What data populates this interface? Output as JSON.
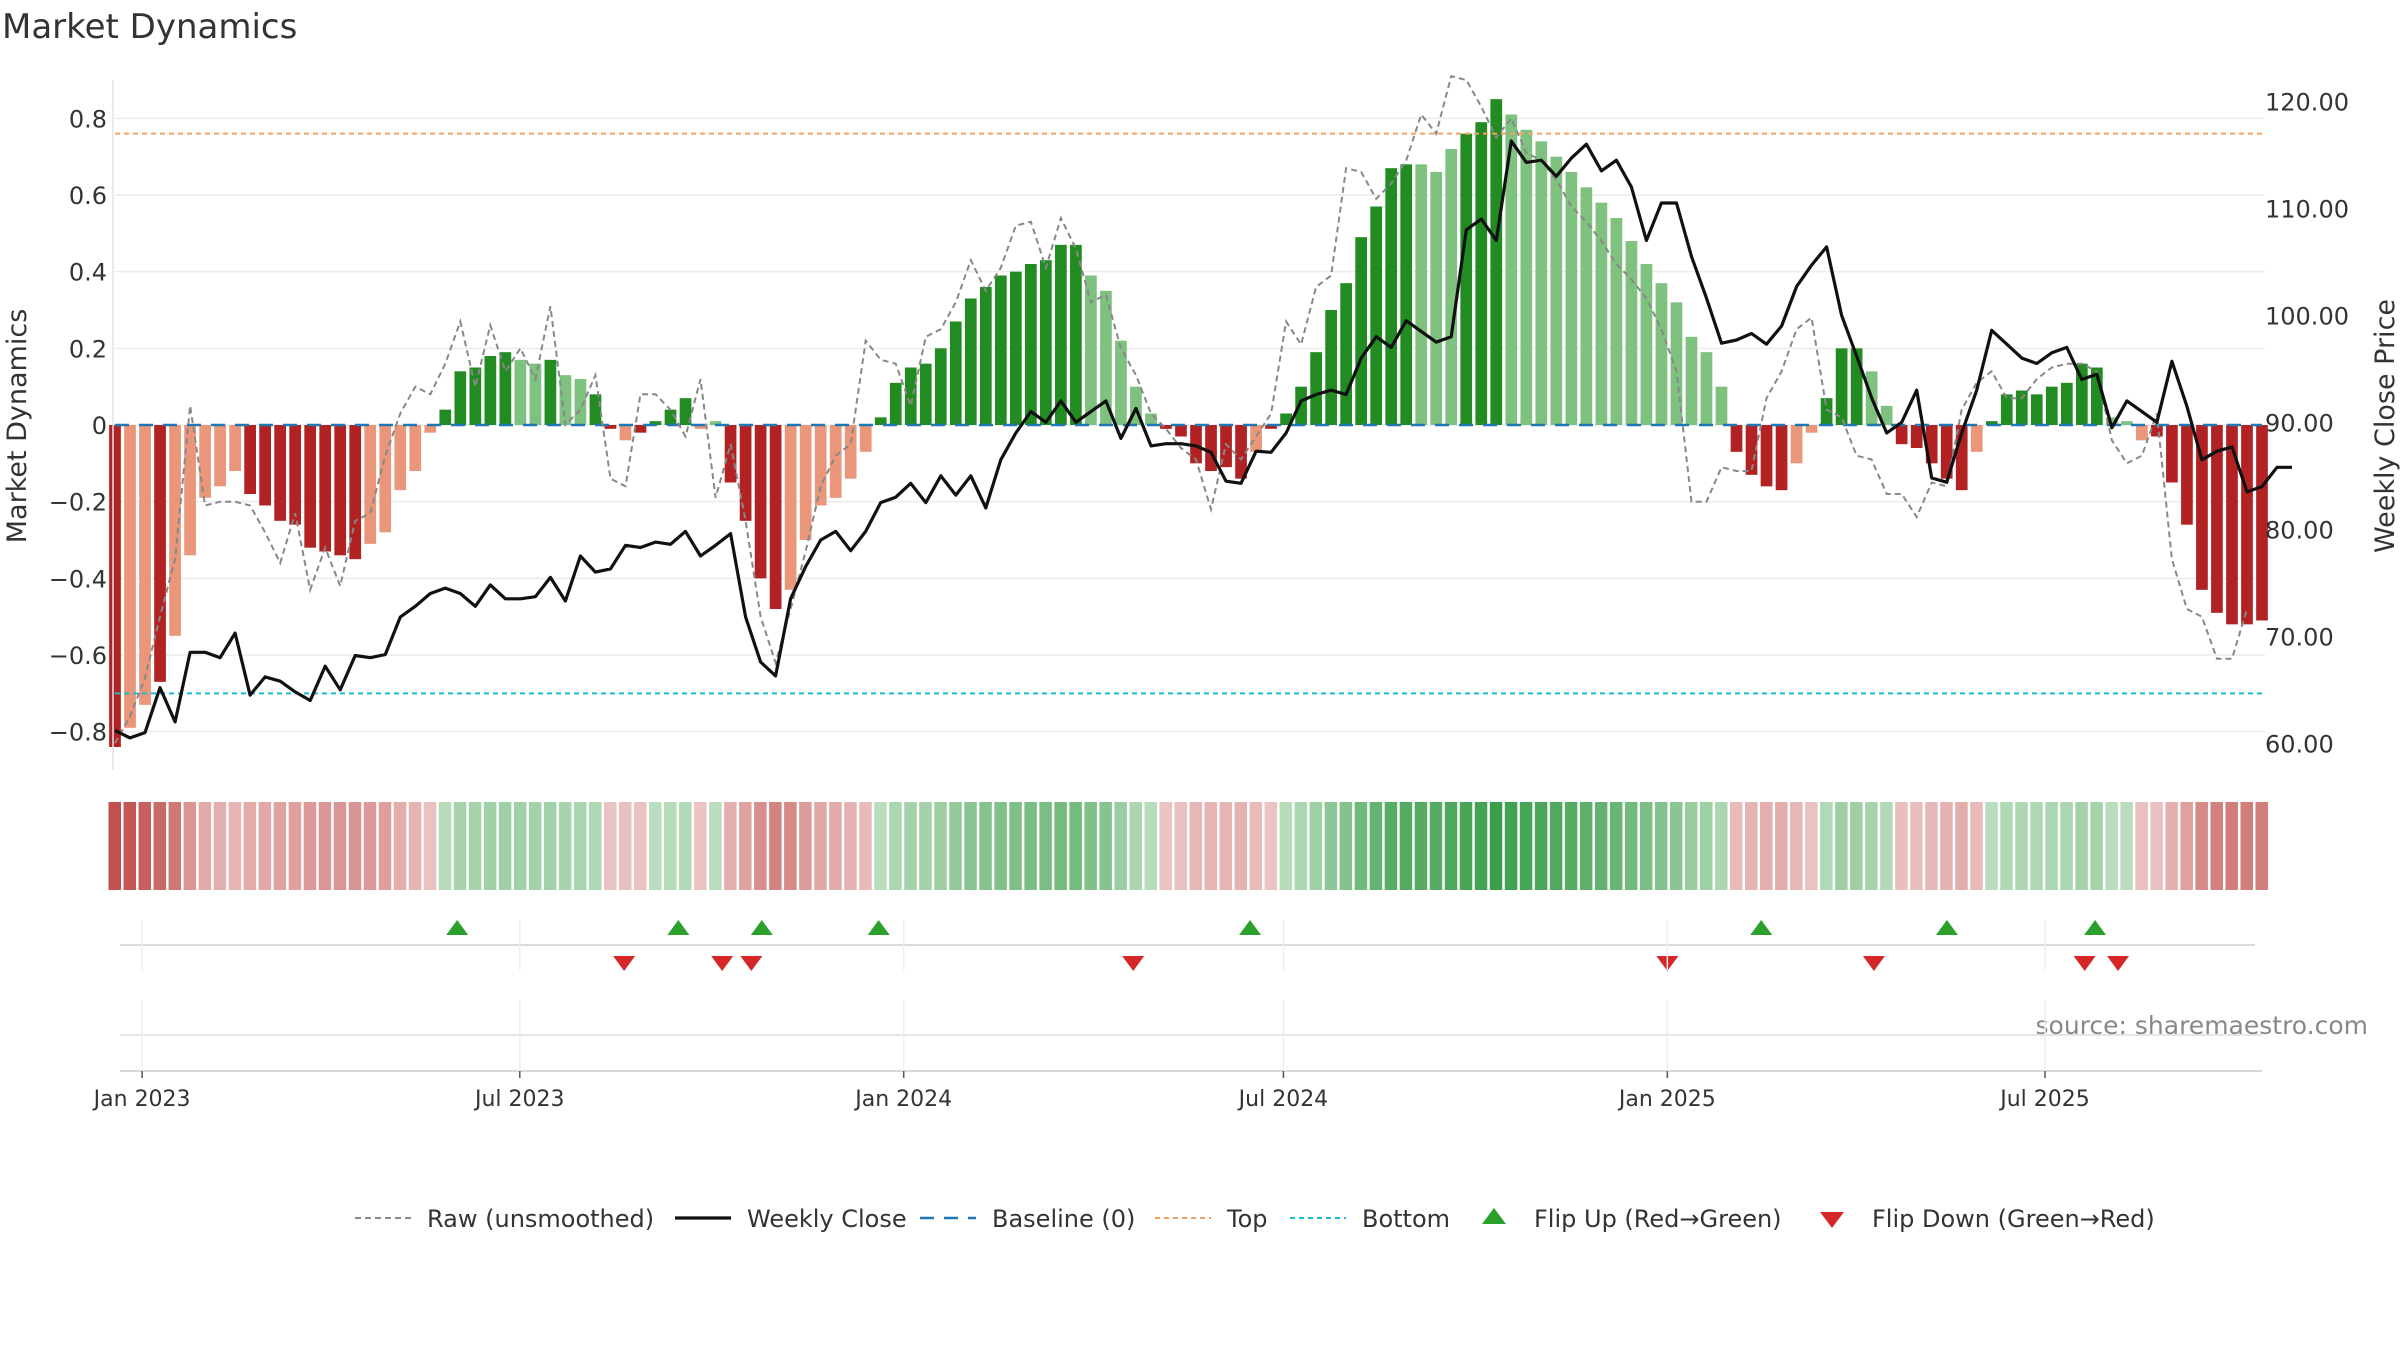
{
  "chart_data": {
    "type": "bar",
    "title": "Market Dynamics",
    "ylabel_left": "Market Dynamics",
    "ylabel_right": "Weekly Close Price",
    "left_ylim": [
      -0.9,
      0.9
    ],
    "left_ticks": [
      "0.8",
      "0.6",
      "0.4",
      "0.2",
      "0",
      "−0.2",
      "−0.4",
      "−0.6",
      "−0.8"
    ],
    "right_ylim": [
      57.5,
      122.0
    ],
    "right_ticks": [
      "120.00",
      "110.00",
      "100.00",
      "90.00",
      "80.00",
      "70.00",
      "60.00"
    ],
    "x_ticks": [
      "Jan 2023",
      "Jul 2023",
      "Jan 2024",
      "Jul 2024",
      "Jan 2025",
      "Jul 2025"
    ],
    "x_tick_dates": [
      "2023-01-01",
      "2023-07-01",
      "2024-01-01",
      "2024-07-01",
      "2025-01-01",
      "2025-07-01"
    ],
    "date_range": [
      "2022-12-19",
      "2025-10-13"
    ],
    "grid": true,
    "lines": {
      "baseline": 0,
      "top": 0.76,
      "bottom": -0.7
    },
    "colors": {
      "up_strong": "#228B22",
      "up_weak": "#7fc17f",
      "down_strong": "#b22222",
      "down_weak": "#e9967a",
      "close": "#111111",
      "raw": "#888888",
      "baseline": "#1f77b4",
      "top": "#f4a460",
      "bottom": "#17becf",
      "flip_up": "#2ca02c",
      "flip_down": "#d62728"
    },
    "series": [
      {
        "name": "Market Dynamics",
        "values": [
          -0.84,
          -0.79,
          -0.73,
          -0.67,
          -0.55,
          -0.34,
          -0.19,
          -0.16,
          -0.12,
          -0.18,
          -0.21,
          -0.25,
          -0.26,
          -0.32,
          -0.33,
          -0.34,
          -0.35,
          -0.31,
          -0.28,
          -0.17,
          -0.12,
          -0.02,
          0.04,
          0.14,
          0.15,
          0.18,
          0.19,
          0.17,
          0.16,
          0.17,
          0.13,
          0.12,
          0.08,
          -0.01,
          -0.04,
          -0.02,
          0.01,
          0.04,
          0.07,
          -0.01,
          0.01,
          -0.15,
          -0.25,
          -0.4,
          -0.48,
          -0.43,
          -0.3,
          -0.21,
          -0.19,
          -0.14,
          -0.07,
          0.02,
          0.11,
          0.15,
          0.16,
          0.2,
          0.27,
          0.33,
          0.36,
          0.39,
          0.4,
          0.42,
          0.43,
          0.47,
          0.47,
          0.39,
          0.35,
          0.22,
          0.1,
          0.03,
          -0.01,
          -0.03,
          -0.1,
          -0.12,
          -0.11,
          -0.14,
          -0.07,
          -0.01,
          0.03,
          0.1,
          0.19,
          0.3,
          0.37,
          0.49,
          0.57,
          0.67,
          0.68,
          0.68,
          0.66,
          0.72,
          0.76,
          0.79,
          0.85,
          0.81,
          0.77,
          0.74,
          0.7,
          0.66,
          0.62,
          0.58,
          0.54,
          0.48,
          0.42,
          0.37,
          0.32,
          0.23,
          0.19,
          0.1,
          -0.07,
          -0.13,
          -0.16,
          -0.17,
          -0.1,
          -0.02,
          0.07,
          0.2,
          0.2,
          0.14,
          0.05,
          -0.05,
          -0.06,
          -0.1,
          -0.14,
          -0.17,
          -0.07,
          0.01,
          0.08,
          0.09,
          0.08,
          0.1,
          0.11,
          0.16,
          0.15,
          0.02,
          0.01,
          -0.04,
          -0.03,
          -0.15,
          -0.26,
          -0.43,
          -0.49,
          -0.52,
          -0.52,
          -0.51
        ],
        "flags": [
          "S",
          "W",
          "W",
          "S",
          "W",
          "W",
          "W",
          "W",
          "W",
          "S",
          "S",
          "S",
          "S",
          "S",
          "S",
          "S",
          "S",
          "W",
          "W",
          "W",
          "W",
          "W",
          "S",
          "S",
          "S",
          "S",
          "S",
          "W",
          "W",
          "S",
          "W",
          "W",
          "S",
          "S",
          "W",
          "S",
          "S",
          "S",
          "S",
          "W",
          "W",
          "S",
          "S",
          "S",
          "S",
          "W",
          "W",
          "W",
          "W",
          "W",
          "W",
          "S",
          "S",
          "S",
          "S",
          "S",
          "S",
          "S",
          "S",
          "S",
          "S",
          "S",
          "S",
          "S",
          "S",
          "W",
          "W",
          "W",
          "W",
          "W",
          "S",
          "S",
          "S",
          "S",
          "S",
          "S",
          "W",
          "S",
          "S",
          "S",
          "S",
          "S",
          "S",
          "S",
          "S",
          "S",
          "S",
          "W",
          "W",
          "W",
          "S",
          "S",
          "S",
          "W",
          "W",
          "W",
          "W",
          "W",
          "W",
          "W",
          "W",
          "W",
          "W",
          "W",
          "W",
          "W",
          "W",
          "W",
          "S",
          "S",
          "S",
          "S",
          "W",
          "W",
          "S",
          "S",
          "S",
          "W",
          "W",
          "S",
          "S",
          "S",
          "S",
          "S",
          "W",
          "S",
          "S",
          "S",
          "S",
          "S",
          "S",
          "S",
          "S",
          "W",
          "W",
          "W",
          "S",
          "S",
          "S",
          "S",
          "S",
          "S",
          "S",
          "S",
          "W",
          "W"
        ]
      },
      {
        "name": "Raw (unsmoothed)",
        "values": [
          -0.83,
          -0.76,
          -0.66,
          -0.5,
          -0.35,
          0.05,
          -0.21,
          -0.2,
          -0.2,
          -0.21,
          -0.28,
          -0.36,
          -0.23,
          -0.43,
          -0.32,
          -0.42,
          -0.25,
          -0.23,
          -0.08,
          0.03,
          0.1,
          0.08,
          0.16,
          0.27,
          0.1,
          0.26,
          0.14,
          0.2,
          0.12,
          0.31,
          0.0,
          0.04,
          0.13,
          -0.14,
          -0.16,
          0.08,
          0.08,
          0.04,
          -0.03,
          0.12,
          -0.19,
          -0.05,
          -0.25,
          -0.5,
          -0.62,
          -0.48,
          -0.33,
          -0.16,
          -0.08,
          -0.05,
          0.22,
          0.17,
          0.16,
          0.05,
          0.23,
          0.25,
          0.32,
          0.43,
          0.35,
          0.41,
          0.52,
          0.53,
          0.41,
          0.54,
          0.46,
          0.32,
          0.34,
          0.2,
          0.13,
          0.03,
          -0.01,
          -0.06,
          -0.09,
          -0.22,
          -0.05,
          -0.09,
          -0.03,
          0.03,
          0.27,
          0.21,
          0.36,
          0.39,
          0.67,
          0.66,
          0.59,
          0.63,
          0.69,
          0.81,
          0.76,
          0.91,
          0.9,
          0.83,
          0.75,
          0.8,
          0.71,
          0.69,
          0.64,
          0.57,
          0.53,
          0.48,
          0.42,
          0.38,
          0.33,
          0.25,
          0.14,
          -0.2,
          -0.2,
          -0.11,
          -0.12,
          -0.12,
          0.07,
          0.14,
          0.25,
          0.28,
          0.04,
          0.02,
          -0.08,
          -0.09,
          -0.18,
          -0.18,
          -0.24,
          -0.15,
          -0.16,
          0.04,
          0.11,
          0.14,
          0.07,
          0.07,
          0.12,
          0.15,
          0.16,
          0.16,
          0.14,
          -0.04,
          -0.1,
          -0.08,
          0.03,
          -0.35,
          -0.48,
          -0.5,
          -0.61,
          -0.61,
          -0.48
        ]
      },
      {
        "name": "Weekly Close",
        "values": [
          61.2,
          60.5,
          61.0,
          65.2,
          62.0,
          68.5,
          68.5,
          68.0,
          70.3,
          64.5,
          66.2,
          65.8,
          64.8,
          64.0,
          67.2,
          65.0,
          68.2,
          68.0,
          68.3,
          71.8,
          72.8,
          74.0,
          74.5,
          74.0,
          72.8,
          74.8,
          73.5,
          73.5,
          73.7,
          75.5,
          73.3,
          77.5,
          76.0,
          76.3,
          78.5,
          78.3,
          78.8,
          78.6,
          79.8,
          77.5,
          78.5,
          79.6,
          71.8,
          67.6,
          66.3,
          73.5,
          76.5,
          79.0,
          79.8,
          78.0,
          79.8,
          82.5,
          83.0,
          84.3,
          82.5,
          85.0,
          83.2,
          85.0,
          82.0,
          86.5,
          89.0,
          91.0,
          90.0,
          92.0,
          90.0,
          91.0,
          92.0,
          88.5,
          91.3,
          87.8,
          88.0,
          88.0,
          87.8,
          87.2,
          84.5,
          84.3,
          87.3,
          87.2,
          89.0,
          92.0,
          92.6,
          93.0,
          92.6,
          96.0,
          98.0,
          97.0,
          99.5,
          98.5,
          97.5,
          98.0,
          108.0,
          109.0,
          107.0,
          116.3,
          114.3,
          114.5,
          113.0,
          114.7,
          116.0,
          113.5,
          114.5,
          112.0,
          107.0,
          110.5,
          110.5,
          105.5,
          101.6,
          97.4,
          97.7,
          98.3,
          97.3,
          99.0,
          102.7,
          104.7,
          106.4,
          100.0,
          96.2,
          92.3,
          89.0,
          90.0,
          93.0,
          84.8,
          84.4,
          89.0,
          93.0,
          98.6,
          97.3,
          96.0,
          95.5,
          96.5,
          97.0,
          94.0,
          94.5,
          89.5,
          92.0,
          91.0,
          90.0,
          95.7,
          91.5,
          86.5,
          87.3,
          87.7,
          83.5,
          84.0,
          85.8,
          85.8
        ]
      }
    ],
    "flip_up_idx": [
      11,
      18,
      21,
      27,
      38,
      56,
      62,
      68
    ],
    "flip_down_idx": [
      17,
      20,
      21,
      35,
      56,
      61,
      68,
      69
    ],
    "flip_up_dates": [
      "2023-06-01",
      "2023-09-15",
      "2023-10-25",
      "2023-12-20",
      "2024-06-15",
      "2025-02-15",
      "2025-05-15",
      "2025-07-25"
    ],
    "flip_down_dates": [
      "2023-08-20",
      "2023-10-06",
      "2023-10-20",
      "2024-04-20",
      "2025-01-01",
      "2025-04-10",
      "2025-07-20",
      "2025-08-05"
    ],
    "heat_values": [
      -0.84,
      -0.79,
      -0.73,
      -0.67,
      -0.55,
      -0.34,
      -0.19,
      -0.16,
      -0.12,
      -0.18,
      -0.21,
      -0.25,
      -0.26,
      -0.32,
      -0.33,
      -0.34,
      -0.35,
      -0.31,
      -0.28,
      -0.17,
      -0.12,
      -0.02,
      0.04,
      0.14,
      0.15,
      0.18,
      0.19,
      0.17,
      0.16,
      0.17,
      0.13,
      0.12,
      0.08,
      -0.01,
      -0.04,
      -0.02,
      0.01,
      0.04,
      0.07,
      -0.01,
      0.01,
      -0.15,
      -0.25,
      -0.4,
      -0.48,
      -0.43,
      -0.3,
      -0.21,
      -0.19,
      -0.14,
      -0.07,
      0.02,
      0.11,
      0.15,
      0.16,
      0.2,
      0.27,
      0.33,
      0.36,
      0.39,
      0.4,
      0.42,
      0.43,
      0.47,
      0.47,
      0.39,
      0.35,
      0.22,
      0.1,
      0.03,
      -0.01,
      -0.03,
      -0.1,
      -0.12,
      -0.11,
      -0.14,
      -0.07,
      -0.01,
      0.03,
      0.1,
      0.19,
      0.3,
      0.37,
      0.49,
      0.57,
      0.67,
      0.68,
      0.68,
      0.66,
      0.72,
      0.76,
      0.79,
      0.85,
      0.81,
      0.77,
      0.74,
      0.7,
      0.66,
      0.62,
      0.58,
      0.54,
      0.48,
      0.42,
      0.37,
      0.32,
      0.23,
      0.19,
      0.1,
      -0.07,
      -0.13,
      -0.16,
      -0.17,
      -0.1,
      -0.02,
      0.07,
      0.2,
      0.2,
      0.14,
      0.05,
      -0.05,
      -0.06,
      -0.1,
      -0.14,
      -0.17,
      -0.07,
      0.01,
      0.08,
      0.09,
      0.08,
      0.1,
      0.11,
      0.16,
      0.15,
      0.02,
      0.01,
      -0.04,
      -0.03,
      -0.15,
      -0.26,
      -0.43,
      -0.49,
      -0.52,
      -0.52,
      -0.51
    ],
    "legend": [
      {
        "label": "Raw (unsmoothed)",
        "kind": "dashed-gray"
      },
      {
        "label": "Weekly Close",
        "kind": "solid-black"
      },
      {
        "label": "Baseline (0)",
        "kind": "dashed-blue"
      },
      {
        "label": "Top",
        "kind": "dotted-orange"
      },
      {
        "label": "Bottom",
        "kind": "dotted-cyan"
      },
      {
        "label": "Flip Up (Red→Green)",
        "kind": "triangle-up"
      },
      {
        "label": "Flip Down (Green→Red)",
        "kind": "triangle-down"
      }
    ],
    "legend_position": "bottom-center",
    "source": "source: sharemaestro.com"
  }
}
